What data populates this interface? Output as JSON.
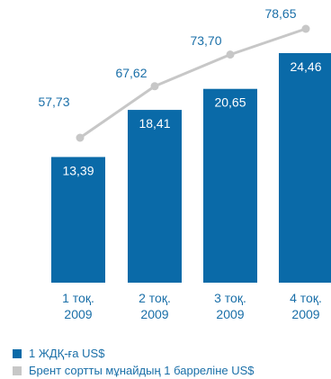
{
  "chart_data": {
    "type": "bar",
    "categories": [
      "1 тоқ.\n2009",
      "2 тоқ.\n2009",
      "3 тоқ.\n2009",
      "4 тоқ.\n2009"
    ],
    "series": [
      {
        "name": "1 ЖДҚ-ға US$",
        "type": "bar",
        "color": "#0a6aa8",
        "values": [
          13.39,
          18.41,
          20.65,
          24.46
        ],
        "labels": [
          "13,39",
          "18,41",
          "20,65",
          "24,46"
        ]
      },
      {
        "name": "Брент сортты мұнайдың 1 баррелiне US$",
        "type": "line",
        "color": "#c7c7c7",
        "values": [
          57.73,
          67.62,
          73.7,
          78.65
        ],
        "labels": [
          "57,73",
          "67,62",
          "73,70",
          "78,65"
        ]
      }
    ],
    "grid": false,
    "legend_placement": "bottom-left",
    "label_color": "#1a6fa8"
  }
}
